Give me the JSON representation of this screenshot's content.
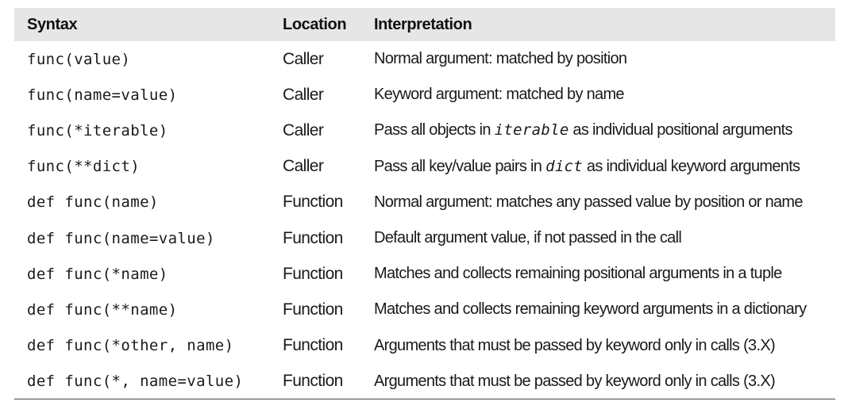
{
  "table": {
    "headers": {
      "syntax": "Syntax",
      "location": "Location",
      "interpretation": "Interpretation"
    },
    "rows": [
      {
        "syntax": "func(value)",
        "location": "Caller",
        "interp_pre": "Normal argument: matched by position",
        "interp_code": "",
        "interp_post": ""
      },
      {
        "syntax": "func(name=value)",
        "location": "Caller",
        "interp_pre": "Keyword argument: matched by name",
        "interp_code": "",
        "interp_post": ""
      },
      {
        "syntax": "func(*iterable)",
        "location": "Caller",
        "interp_pre": "Pass all objects in ",
        "interp_code": "iterable",
        "interp_post": " as individual positional arguments"
      },
      {
        "syntax": "func(**dict)",
        "location": "Caller",
        "interp_pre": "Pass all key/value pairs in ",
        "interp_code": "dict",
        "interp_post": " as individual keyword arguments"
      },
      {
        "syntax": "def func(name)",
        "location": "Function",
        "interp_pre": "Normal argument: matches any passed value by position or name",
        "interp_code": "",
        "interp_post": ""
      },
      {
        "syntax": "def func(name=value)",
        "location": "Function",
        "interp_pre": "Default argument value, if not passed in the call",
        "interp_code": "",
        "interp_post": ""
      },
      {
        "syntax": "def func(*name)",
        "location": "Function",
        "interp_pre": "Matches and collects remaining positional arguments in a tuple",
        "interp_code": "",
        "interp_post": ""
      },
      {
        "syntax": "def func(**name)",
        "location": "Function",
        "interp_pre": "Matches and collects remaining keyword arguments in a dictionary",
        "interp_code": "",
        "interp_post": ""
      },
      {
        "syntax": "def func(*other, name)",
        "location": "Function",
        "interp_pre": "Arguments that must be passed by keyword only in calls (3.X)",
        "interp_code": "",
        "interp_post": ""
      },
      {
        "syntax": "def func(*, name=value)",
        "location": "Function",
        "interp_pre": "Arguments that must be passed by keyword only in calls (3.X)",
        "interp_code": "",
        "interp_post": ""
      }
    ]
  }
}
